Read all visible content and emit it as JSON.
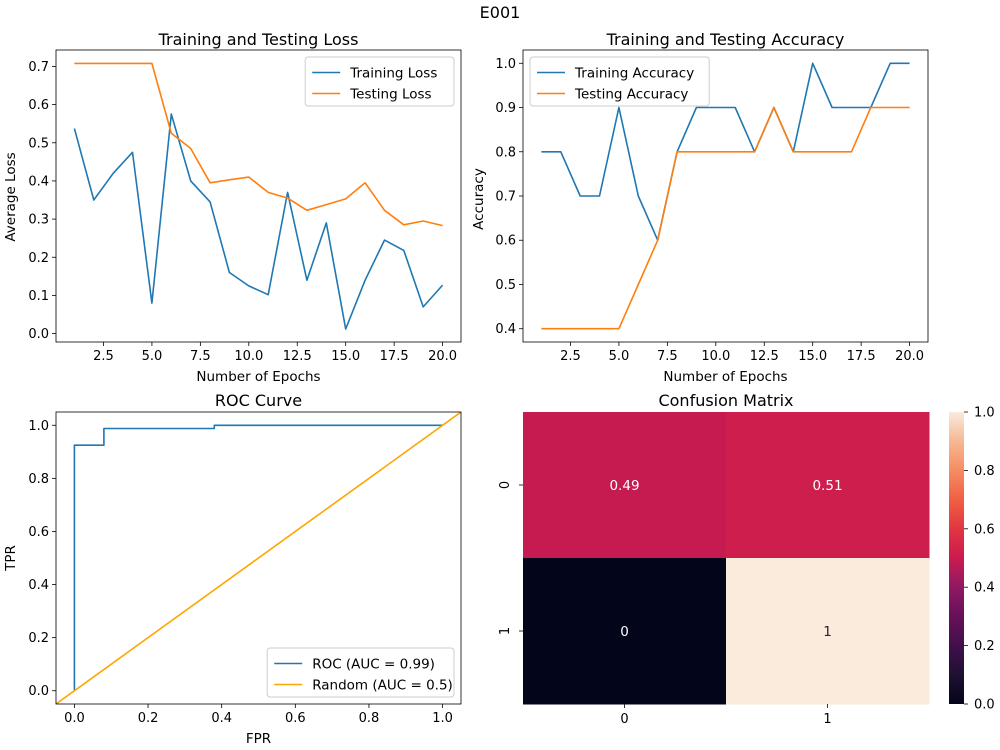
{
  "figure_title": "E001",
  "chart_data": [
    {
      "id": "loss",
      "type": "line",
      "title": "Training and Testing Loss",
      "xlabel": "Number of Epochs",
      "ylabel": "Average Loss",
      "xlim": [
        0.05,
        20.95
      ],
      "ylim": [
        -0.022,
        0.743
      ],
      "xticks": [
        2.5,
        5.0,
        7.5,
        10.0,
        12.5,
        15.0,
        17.5,
        20.0
      ],
      "xtick_labels": [
        "2.5",
        "5.0",
        "7.5",
        "10.0",
        "12.5",
        "15.0",
        "17.5",
        "20.0"
      ],
      "yticks": [
        0.0,
        0.1,
        0.2,
        0.3,
        0.4,
        0.5,
        0.6,
        0.7
      ],
      "ytick_labels": [
        "0.0",
        "0.1",
        "0.2",
        "0.3",
        "0.4",
        "0.5",
        "0.6",
        "0.7"
      ],
      "legend": "top-right",
      "x": [
        1,
        2,
        3,
        4,
        5,
        6,
        7,
        8,
        9,
        10,
        11,
        12,
        13,
        14,
        15,
        16,
        17,
        18,
        19,
        20
      ],
      "series": [
        {
          "name": "Training Loss",
          "color": "#1f77b4",
          "values": [
            0.537,
            0.35,
            0.42,
            0.475,
            0.08,
            0.575,
            0.4,
            0.345,
            0.16,
            0.125,
            0.102,
            0.37,
            0.14,
            0.29,
            0.012,
            0.14,
            0.245,
            0.218,
            0.07,
            0.127
          ]
        },
        {
          "name": "Testing Loss",
          "color": "#ff7f0e",
          "values": [
            0.708,
            0.708,
            0.708,
            0.708,
            0.708,
            0.525,
            0.485,
            0.395,
            0.403,
            0.41,
            0.37,
            0.355,
            0.323,
            0.338,
            0.353,
            0.395,
            0.323,
            0.285,
            0.295,
            0.283
          ]
        }
      ]
    },
    {
      "id": "accuracy",
      "type": "line",
      "title": "Training and Testing Accuracy",
      "xlabel": "Number of Epochs",
      "ylabel": "Accuracy",
      "xlim": [
        0.05,
        20.95
      ],
      "ylim": [
        0.37,
        1.03
      ],
      "xticks": [
        2.5,
        5.0,
        7.5,
        10.0,
        12.5,
        15.0,
        17.5,
        20.0
      ],
      "xtick_labels": [
        "2.5",
        "5.0",
        "7.5",
        "10.0",
        "12.5",
        "15.0",
        "17.5",
        "20.0"
      ],
      "yticks": [
        0.4,
        0.5,
        0.6,
        0.7,
        0.8,
        0.9,
        1.0
      ],
      "ytick_labels": [
        "0.4",
        "0.5",
        "0.6",
        "0.7",
        "0.8",
        "0.9",
        "1.0"
      ],
      "legend": "top-left",
      "x": [
        1,
        2,
        3,
        4,
        5,
        6,
        7,
        8,
        9,
        10,
        11,
        12,
        13,
        14,
        15,
        16,
        17,
        18,
        19,
        20
      ],
      "series": [
        {
          "name": "Training Accuracy",
          "color": "#1f77b4",
          "values": [
            0.8,
            0.8,
            0.7,
            0.7,
            0.9,
            0.7,
            0.6,
            0.8,
            0.9,
            0.9,
            0.9,
            0.8,
            0.9,
            0.8,
            1.0,
            0.9,
            0.9,
            0.9,
            1.0,
            1.0
          ]
        },
        {
          "name": "Testing Accuracy",
          "color": "#ff7f0e",
          "values": [
            0.4,
            0.4,
            0.4,
            0.4,
            0.4,
            0.5,
            0.6,
            0.8,
            0.8,
            0.8,
            0.8,
            0.8,
            0.9,
            0.8,
            0.8,
            0.8,
            0.8,
            0.9,
            0.9,
            0.9
          ]
        }
      ]
    },
    {
      "id": "roc",
      "type": "line",
      "title": "ROC Curve",
      "xlabel": "FPR",
      "ylabel": "TPR",
      "xlim": [
        -0.05,
        1.05
      ],
      "ylim": [
        -0.05,
        1.05
      ],
      "xticks": [
        0.0,
        0.2,
        0.4,
        0.6,
        0.8,
        1.0
      ],
      "xtick_labels": [
        "0.0",
        "0.2",
        "0.4",
        "0.6",
        "0.8",
        "1.0"
      ],
      "yticks": [
        0.0,
        0.2,
        0.4,
        0.6,
        0.8,
        1.0
      ],
      "ytick_labels": [
        "0.0",
        "0.2",
        "0.4",
        "0.6",
        "0.8",
        "1.0"
      ],
      "legend": "bottom-right",
      "series": [
        {
          "name": "ROC (AUC = 0.99)",
          "color": "#1f77b4",
          "x": [
            0.0,
            0.0,
            0.0,
            0.08,
            0.08,
            0.38,
            0.38,
            1.0
          ],
          "y": [
            0.0,
            0.925,
            0.925,
            0.925,
            0.988,
            0.988,
            1.0,
            1.0
          ]
        },
        {
          "name": "Random (AUC = 0.5)",
          "color": "#ffa500",
          "x": [
            -0.05,
            1.05
          ],
          "y": [
            -0.05,
            1.05
          ]
        }
      ]
    },
    {
      "id": "confusion",
      "type": "heatmap",
      "title": "Confusion Matrix",
      "row_labels": [
        "0",
        "1"
      ],
      "col_labels": [
        "0",
        "1"
      ],
      "values": [
        [
          0.49,
          0.51
        ],
        [
          0,
          1
        ]
      ],
      "cell_labels": [
        [
          "0.49",
          "0.51"
        ],
        [
          "0",
          "1"
        ]
      ],
      "vmin": 0.0,
      "vmax": 1.0,
      "colorbar_ticks": [
        0.0,
        0.2,
        0.4,
        0.6,
        0.8,
        1.0
      ],
      "colorbar_tick_labels": [
        "0.0",
        "0.2",
        "0.4",
        "0.6",
        "0.8",
        "1.0"
      ],
      "colormap": "rocket"
    }
  ]
}
